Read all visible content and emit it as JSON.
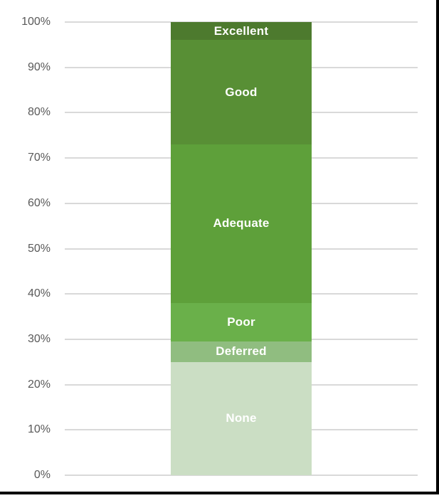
{
  "chart_data": {
    "type": "bar",
    "subtype": "stacked-100-percent",
    "orientation": "vertical",
    "title": "",
    "xlabel": "",
    "ylabel": "",
    "categories": [
      "(single column)"
    ],
    "segments_bottom_to_top": [
      {
        "label": "None",
        "value": 25,
        "color": "#cbdec4",
        "label_color": "#ffffff"
      },
      {
        "label": "Deferred",
        "value": 4.5,
        "color": "#90bd80",
        "label_color": "#ffffff"
      },
      {
        "label": "Poor",
        "value": 8.5,
        "color": "#6ab04a",
        "label_color": "#ffffff"
      },
      {
        "label": "Adequate",
        "value": 35,
        "color": "#5ea03a",
        "label_color": "#ffffff"
      },
      {
        "label": "Good",
        "value": 23,
        "color": "#588f35",
        "label_color": "#ffffff"
      },
      {
        "label": "Excellent",
        "value": 4,
        "color": "#4d7a2e",
        "label_color": "#ffffff"
      }
    ],
    "y_axis": {
      "min": 0,
      "max": 100,
      "ticks": [
        {
          "label": "0%",
          "value": 0
        },
        {
          "label": "10%",
          "value": 10
        },
        {
          "label": "20%",
          "value": 20
        },
        {
          "label": "30%",
          "value": 30
        },
        {
          "label": "40%",
          "value": 40
        },
        {
          "label": "50%",
          "value": 50
        },
        {
          "label": "60%",
          "value": 60
        },
        {
          "label": "70%",
          "value": 70
        },
        {
          "label": "80%",
          "value": 80
        },
        {
          "label": "90%",
          "value": 90
        },
        {
          "label": "100%",
          "value": 100
        }
      ],
      "tick_color": "#595959",
      "grid": true,
      "grid_color": "#d9d9d9"
    },
    "legend": "none",
    "colors": {
      "background": "#ffffff",
      "frame_border": "#000000"
    }
  }
}
